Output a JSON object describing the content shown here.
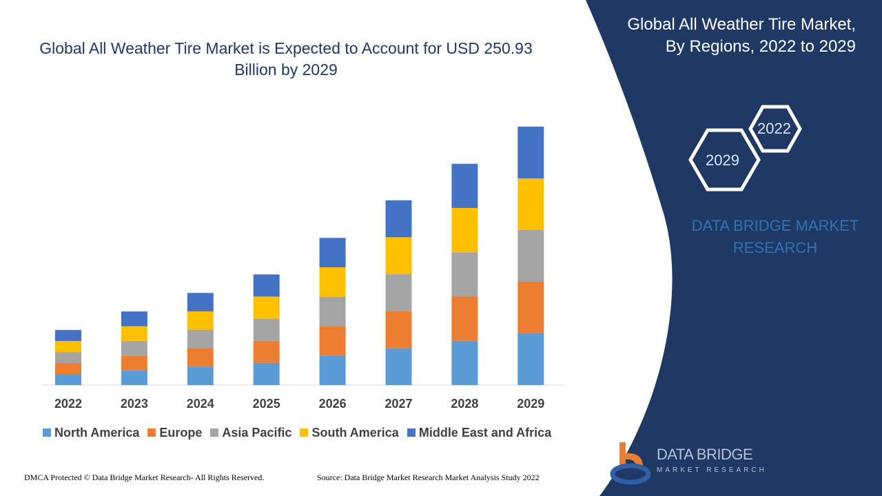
{
  "title": "Global All Weather Tire Market is Expected to Account for USD 250.93 Billion by 2029",
  "side_panel": {
    "title_line1": "Global All Weather Tire Market,",
    "title_line2": "By Regions, 2022 to 2029",
    "hex_start": "2022",
    "hex_end": "2029",
    "brand_line1": "DATA BRIDGE MARKET",
    "brand_line2": "RESEARCH",
    "logo_text": "DATA BRIDGE",
    "logo_subtext": "MARKET RESEARCH",
    "panel_color": "#1f3864"
  },
  "footer": {
    "left": "DMCA Protected © Data Bridge Market Research- All Rights Reserved.",
    "right": "Source: Data Bridge Market Research Market Analysis Study 2022"
  },
  "chart_data": {
    "type": "bar",
    "stacked": true,
    "title": "Global All Weather Tire Market is Expected to Account for USD 250.93 Billion by 2029",
    "categories": [
      "2022",
      "2023",
      "2024",
      "2025",
      "2026",
      "2027",
      "2028",
      "2029"
    ],
    "series": [
      {
        "name": "North America",
        "color": "#5b9bd5",
        "values": [
          10.7,
          14.3,
          17.9,
          21.5,
          28.6,
          35.9,
          43.0,
          50.2
        ]
      },
      {
        "name": "Europe",
        "color": "#ed7d31",
        "values": [
          10.7,
          14.3,
          17.9,
          21.5,
          28.6,
          35.9,
          43.0,
          50.2
        ]
      },
      {
        "name": "Asia Pacific",
        "color": "#a5a5a5",
        "values": [
          10.7,
          14.3,
          17.9,
          21.5,
          28.6,
          35.9,
          43.0,
          50.2
        ]
      },
      {
        "name": "South America",
        "color": "#ffc000",
        "values": [
          10.7,
          14.3,
          17.9,
          21.5,
          28.6,
          35.9,
          43.0,
          50.2
        ]
      },
      {
        "name": "Middle East and Africa",
        "color": "#4472c4",
        "values": [
          10.7,
          14.3,
          17.9,
          21.5,
          28.6,
          35.9,
          43.0,
          50.3
        ]
      }
    ],
    "ylim": [
      0,
      250.93
    ],
    "grid": false,
    "legend": "bottom",
    "xlabel": "",
    "ylabel": ""
  }
}
